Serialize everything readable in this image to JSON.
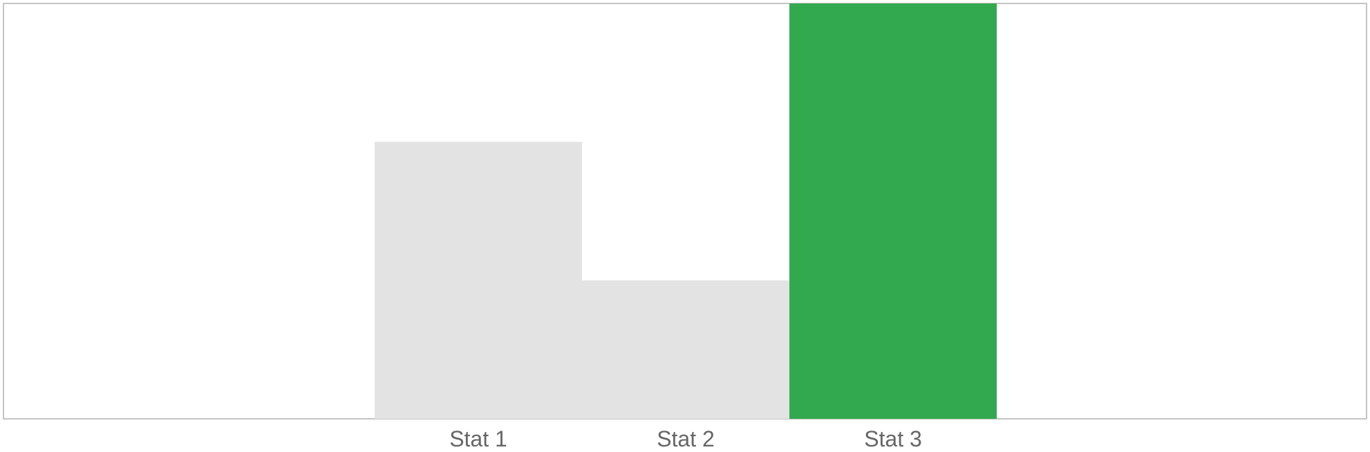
{
  "chart_data": {
    "type": "bar",
    "title": "",
    "xlabel": "",
    "ylabel": "",
    "categories": [
      "Stat 1",
      "Stat 2",
      "Stat 3"
    ],
    "values": [
      2,
      1,
      3
    ],
    "ylim": [
      0,
      3
    ],
    "grid": false,
    "legend": "none",
    "colors": {
      "bar_default": "#e3e3e3",
      "bar_highlight": "#33a94f",
      "frame": "#c4c4c4",
      "tick_label": "#666666"
    },
    "highlight_index": 2
  }
}
